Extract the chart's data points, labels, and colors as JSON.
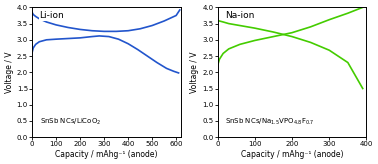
{
  "li_color": "#2255cc",
  "na_color": "#44cc00",
  "li_xlim": [
    0,
    620
  ],
  "na_xlim": [
    0,
    400
  ],
  "ylim": [
    0.0,
    4.0
  ],
  "yticks": [
    0.0,
    0.5,
    1.0,
    1.5,
    2.0,
    2.5,
    3.0,
    3.5,
    4.0
  ],
  "li_xticks": [
    0,
    100,
    200,
    300,
    400,
    500,
    600
  ],
  "na_xticks": [
    0,
    100,
    200,
    300,
    400
  ],
  "li_title": "Li-ion",
  "na_title": "Na-ion",
  "ylabel": "Voltage / V",
  "xlabel": "Capacity / mAhg⁻¹ (anode)",
  "background": "#ffffff",
  "li_curve1_x": [
    0,
    5,
    15,
    30,
    60,
    100,
    150,
    200,
    250,
    300,
    350,
    400,
    450,
    500,
    550,
    600,
    615
  ],
  "li_curve1_y": [
    3.85,
    3.78,
    3.72,
    3.65,
    3.55,
    3.46,
    3.38,
    3.32,
    3.28,
    3.26,
    3.26,
    3.28,
    3.34,
    3.44,
    3.58,
    3.75,
    3.92
  ],
  "li_curve2_x": [
    0,
    5,
    15,
    30,
    60,
    100,
    150,
    200,
    250,
    280,
    320,
    360,
    400,
    440,
    480,
    520,
    560,
    590,
    610
  ],
  "li_curve2_y": [
    2.6,
    2.75,
    2.86,
    2.94,
    3.0,
    3.02,
    3.04,
    3.06,
    3.1,
    3.12,
    3.1,
    3.02,
    2.88,
    2.7,
    2.5,
    2.3,
    2.12,
    2.03,
    1.98
  ],
  "na_curve1_x": [
    0,
    5,
    15,
    30,
    60,
    100,
    150,
    200,
    250,
    300,
    350,
    390
  ],
  "na_curve1_y": [
    3.6,
    3.58,
    3.55,
    3.5,
    3.44,
    3.36,
    3.24,
    3.1,
    2.92,
    2.68,
    2.3,
    1.5
  ],
  "na_curve2_x": [
    0,
    5,
    15,
    30,
    60,
    100,
    150,
    200,
    250,
    300,
    350,
    390
  ],
  "na_curve2_y": [
    2.2,
    2.4,
    2.58,
    2.72,
    2.86,
    2.98,
    3.1,
    3.22,
    3.4,
    3.62,
    3.82,
    4.0
  ]
}
